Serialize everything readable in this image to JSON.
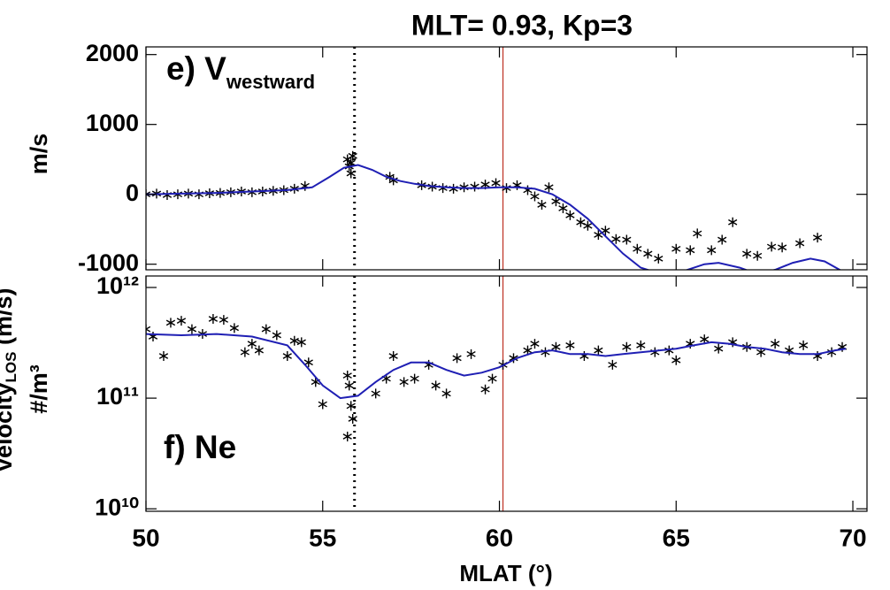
{
  "chart_data": [
    {
      "type": "scatter",
      "title": "MLT= 0.93, Kp=3",
      "ylabel": "m/s",
      "panel_label": {
        "text": "e) V",
        "sub": "westward"
      },
      "xlim": [
        50,
        70.4
      ],
      "xticks": [
        50,
        55,
        60,
        65,
        70
      ],
      "ylim": [
        -1080,
        2110
      ],
      "yticks": [
        -1000,
        0,
        1000,
        2000
      ],
      "vlines": [
        {
          "x": 55.9,
          "color": "#000000",
          "style": "dotted"
        },
        {
          "x": 60.1,
          "color": "#c0392b",
          "style": "solid"
        }
      ],
      "series": [
        {
          "style": "points",
          "color": "#000000",
          "x": [
            50,
            50.3,
            50.6,
            50.9,
            51.2,
            51.5,
            51.8,
            52.1,
            52.4,
            52.7,
            53.0,
            53.3,
            53.6,
            53.9,
            54.2,
            54.5,
            55.7,
            55.75,
            55.8,
            55.85,
            55.8,
            56.9,
            57.0,
            57.8,
            58.1,
            58.4,
            58.7,
            59.0,
            59.3,
            59.6,
            59.9,
            60.2,
            60.5,
            60.8,
            61.0,
            61.2,
            61.4,
            61.6,
            61.8,
            62.0,
            62.3,
            62.5,
            62.8,
            63.0,
            63.3,
            63.6,
            63.9,
            64.2,
            64.5,
            65.0,
            65.4,
            65.6,
            66.0,
            66.3,
            66.6,
            67.0,
            67.3,
            67.7,
            68.0,
            68.5,
            69.0
          ],
          "values": [
            0,
            10,
            -10,
            0,
            10,
            0,
            15,
            20,
            30,
            40,
            30,
            40,
            50,
            60,
            80,
            120,
            500,
            400,
            300,
            550,
            450,
            250,
            200,
            130,
            110,
            90,
            80,
            100,
            110,
            140,
            160,
            90,
            130,
            60,
            -30,
            -150,
            100,
            -100,
            -200,
            -300,
            -400,
            -450,
            -580,
            -520,
            -640,
            -650,
            -780,
            -850,
            -920,
            -780,
            -800,
            -560,
            -800,
            -650,
            -400,
            -850,
            -880,
            -750,
            -760,
            -700,
            -620
          ]
        },
        {
          "style": "line",
          "color": "#1f1fb4",
          "x": [
            50,
            51,
            52,
            53,
            54,
            54.7,
            55.2,
            55.6,
            56.0,
            56.4,
            56.8,
            57.2,
            57.6,
            58,
            58.5,
            59,
            59.5,
            60,
            60.5,
            61,
            61.5,
            62,
            62.5,
            63,
            63.5,
            64,
            64.5,
            65.2,
            65.8,
            66.2,
            66.8,
            67.3,
            67.8,
            68.3,
            68.8,
            69.2,
            69.7
          ],
          "values": [
            0,
            10,
            20,
            40,
            60,
            100,
            250,
            380,
            420,
            350,
            250,
            190,
            150,
            120,
            100,
            90,
            90,
            100,
            100,
            80,
            0,
            -150,
            -350,
            -600,
            -850,
            -1050,
            -1130,
            -1100,
            -1000,
            -980,
            -1050,
            -1140,
            -1080,
            -980,
            -920,
            -960,
            -1100
          ]
        }
      ]
    },
    {
      "type": "scatter",
      "xlabel": "MLAT (°)",
      "ylabel": "#/m³",
      "log_y": true,
      "panel_label": {
        "text": "f) Ne"
      },
      "side_label": {
        "text": "Velocity",
        "sub": "LOS",
        "rest": " (m/s)"
      },
      "xlim": [
        50,
        70.4
      ],
      "xticks": [
        50,
        55,
        60,
        65,
        70
      ],
      "ylim": [
        9500000000,
        1270000000000
      ],
      "yticks": [
        {
          "value": 10000000000,
          "label": "10¹⁰"
        },
        {
          "value": 100000000000,
          "label": "10¹¹"
        },
        {
          "value": 1000000000000,
          "label": "10¹²"
        }
      ],
      "vlines": [
        {
          "x": 55.9,
          "color": "#000000",
          "style": "dotted"
        },
        {
          "x": 60.1,
          "color": "#c0392b",
          "style": "solid"
        }
      ],
      "series": [
        {
          "style": "points",
          "color": "#000000",
          "x": [
            50,
            50.2,
            50.5,
            50.7,
            51,
            51.3,
            51.6,
            51.9,
            52.2,
            52.5,
            52.8,
            53,
            53.2,
            53.4,
            53.7,
            54,
            54.2,
            54.4,
            54.6,
            54.8,
            55,
            55.7,
            55.75,
            55.8,
            55.85,
            55.7,
            56.5,
            56.8,
            57,
            57.3,
            57.6,
            58,
            58.2,
            58.5,
            58.8,
            59.2,
            59.6,
            59.8,
            60.1,
            60.4,
            60.8,
            61,
            61.3,
            61.6,
            62,
            62.4,
            62.8,
            63.2,
            63.6,
            64,
            64.4,
            64.8,
            65,
            65.4,
            65.8,
            66.2,
            66.6,
            67,
            67.4,
            67.8,
            68.2,
            68.6,
            69,
            69.4,
            69.7
          ],
          "values": [
            420000000000,
            360000000000,
            240000000000,
            480000000000,
            500000000000,
            420000000000,
            380000000000,
            520000000000,
            510000000000,
            430000000000,
            260000000000,
            310000000000,
            270000000000,
            420000000000,
            370000000000,
            240000000000,
            330000000000,
            320000000000,
            210000000000,
            140000000000,
            88000000000,
            160000000000,
            130000000000,
            85000000000,
            65000000000,
            45000000000,
            110000000000,
            150000000000,
            240000000000,
            140000000000,
            150000000000,
            200000000000,
            130000000000,
            110000000000,
            230000000000,
            250000000000,
            120000000000,
            150000000000,
            200000000000,
            230000000000,
            270000000000,
            310000000000,
            260000000000,
            290000000000,
            300000000000,
            240000000000,
            270000000000,
            200000000000,
            290000000000,
            300000000000,
            260000000000,
            270000000000,
            220000000000,
            310000000000,
            340000000000,
            280000000000,
            320000000000,
            290000000000,
            260000000000,
            310000000000,
            270000000000,
            300000000000,
            240000000000,
            260000000000,
            290000000000
          ]
        },
        {
          "style": "line",
          "color": "#1f1fb4",
          "x": [
            50,
            51,
            52,
            53,
            54,
            54.5,
            55,
            55.5,
            56,
            56.5,
            57,
            57.5,
            58,
            58.5,
            59,
            59.5,
            60,
            60.5,
            61,
            61.5,
            62,
            62.5,
            63,
            63.5,
            64,
            65,
            65.5,
            66,
            66.5,
            67,
            67.5,
            68,
            68.5,
            69,
            69.5,
            69.8
          ],
          "values": [
            380000000000,
            370000000000,
            380000000000,
            360000000000,
            300000000000,
            200000000000,
            130000000000,
            100000000000,
            105000000000,
            140000000000,
            180000000000,
            210000000000,
            210000000000,
            180000000000,
            160000000000,
            170000000000,
            190000000000,
            230000000000,
            260000000000,
            270000000000,
            250000000000,
            250000000000,
            240000000000,
            250000000000,
            260000000000,
            280000000000,
            300000000000,
            320000000000,
            310000000000,
            290000000000,
            280000000000,
            260000000000,
            250000000000,
            250000000000,
            270000000000,
            280000000000
          ]
        }
      ]
    }
  ]
}
